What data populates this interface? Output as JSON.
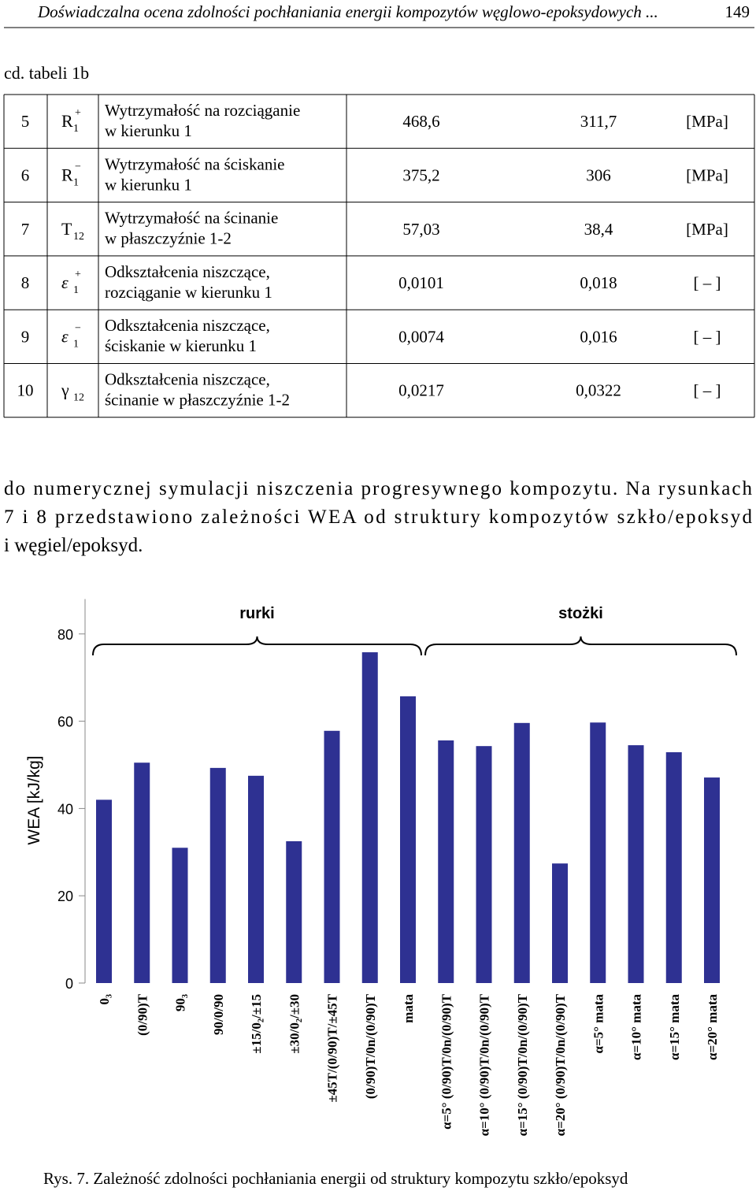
{
  "header": {
    "title": "Doświadczalna ocena zdolności pochłaniania energii kompozytów węglowo-epoksydowych ...",
    "page": "149"
  },
  "table": {
    "caption": "cd. tabeli 1b",
    "rows": [
      {
        "no": "5",
        "symbol": {
          "base": "R",
          "sub": "1",
          "sup": "+"
        },
        "description": [
          "Wytrzymałość na rozciąganie",
          "w kierunku 1"
        ],
        "values": [
          "468,6",
          "311,7"
        ],
        "unit": "[MPa]"
      },
      {
        "no": "6",
        "symbol": {
          "base": "R",
          "sub": "1",
          "sup": "−"
        },
        "description": [
          "Wytrzymałość na ściskanie",
          "w kierunku 1"
        ],
        "values": [
          "375,2",
          "306"
        ],
        "unit": "[MPa]"
      },
      {
        "no": "7",
        "symbol": {
          "base": "T",
          "sub": "12"
        },
        "description": [
          "Wytrzymałość na ścinanie",
          "w płaszczyźnie 1-2"
        ],
        "values": [
          "57,03",
          "38,4"
        ],
        "unit": "[MPa]"
      },
      {
        "no": "8",
        "symbol": {
          "base": "ε",
          "sub": "1",
          "sup": "+"
        },
        "description": [
          "Odkształcenia niszczące,",
          "rozciąganie w kierunku 1"
        ],
        "values": [
          "0,0101",
          "0,018"
        ],
        "unit": "[ – ]"
      },
      {
        "no": "9",
        "symbol": {
          "base": "ε",
          "sub": "1",
          "sup": "−"
        },
        "description": [
          "Odkształcenia niszczące,",
          "ściskanie w kierunku 1"
        ],
        "values": [
          "0,0074",
          "0,016"
        ],
        "unit": "[ – ]"
      },
      {
        "no": "10",
        "symbol": {
          "base": "γ",
          "sub": "12"
        },
        "description": [
          "Odkształcenia niszczące,",
          "ścinanie w płaszczyźnie 1-2"
        ],
        "values": [
          "0,0217",
          "0,0322"
        ],
        "unit": "[ – ]"
      }
    ]
  },
  "paragraph": [
    "do numerycznej symulacji niszczenia progresywnego kompozytu. Na rysunkach",
    "7 i 8 przedstawiono zależności WEA od struktury kompozytów szkło/epoksyd",
    "i węgiel/epoksyd."
  ],
  "chart_data": {
    "type": "bar",
    "y_label": "WEA [kJ/kg]",
    "annotations": [
      "rurki",
      "stożki"
    ],
    "categories": [
      "0₃",
      "(0/90)T",
      "90₃",
      "90/0/90",
      "±15/0₂/±15",
      "±30/0₂/±30",
      "±45T/(0/90)T/±45T",
      "(0/90)T/0n/(0/90)T",
      "mata",
      "α=5°  (0/90)T/0n/(0/90)T",
      "α=10°  (0/90)T/0n/(0/90)T",
      "α=15°  (0/90)T/0n/(0/90)T",
      "α=20°  (0/90)T/0n/(0/90)T",
      "α=5°  mata",
      "α=10°  mata",
      "α=15°  mata",
      "α=20°  mata"
    ],
    "values": [
      42,
      50.5,
      31,
      49.3,
      47.5,
      32.5,
      57.8,
      75.8,
      65.7,
      55.6,
      54.3,
      59.6,
      27.4,
      59.7,
      54.5,
      52.9,
      47.1
    ],
    "color": "#2e3192",
    "ylim": [
      0,
      88
    ],
    "yticks": [
      0,
      20,
      40,
      60,
      80
    ]
  },
  "figure_caption": "Rys. 7. Zależność zdolności pochłaniania energii od struktury kompozytu szkło/epoksyd"
}
